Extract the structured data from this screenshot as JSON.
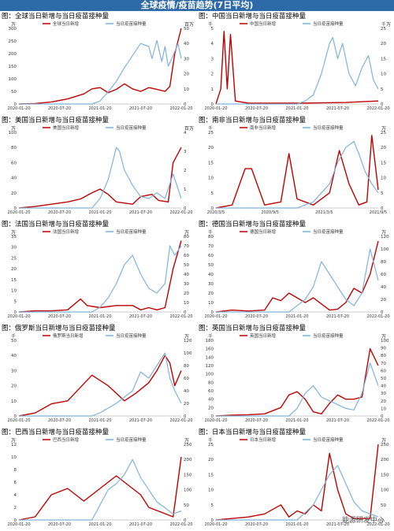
{
  "banner": "全球疫情/疫苗趋势(7日平均)",
  "watermark": "能源研发中心",
  "colors": {
    "cases": "#c00000",
    "vaccines": "#7fb3dc",
    "banner": "#2e6aa8"
  },
  "chart_data": [
    {
      "id": "global",
      "type": "line",
      "title": "图：全球当日新增与当日疫苗接种量",
      "left_unit": "万",
      "right_unit": "百万",
      "left_ticks": [
        0,
        50,
        100,
        150,
        200,
        250,
        300
      ],
      "left_lim": [
        0,
        300
      ],
      "right_ticks": [
        0,
        10,
        20,
        30,
        40,
        50
      ],
      "right_lim": [
        0,
        50
      ],
      "x_ticks": [
        "2020-01-20",
        "2020-07-20",
        "2021-01-20",
        "2021-07-20",
        "2022-01-20"
      ],
      "series": [
        {
          "name": "全球当日新增",
          "axis": "left",
          "color": "#c00000",
          "x": [
            0,
            0.1,
            0.2,
            0.3,
            0.4,
            0.45,
            0.5,
            0.55,
            0.6,
            0.65,
            0.7,
            0.75,
            0.8,
            0.85,
            0.9,
            0.93,
            0.96,
            1.0
          ],
          "y": [
            0,
            2,
            8,
            20,
            40,
            60,
            65,
            45,
            58,
            80,
            60,
            50,
            65,
            58,
            50,
            70,
            200,
            300
          ]
        },
        {
          "name": "当日疫苗接种量",
          "axis": "right",
          "color": "#7fb3dc",
          "x": [
            0,
            0.45,
            0.5,
            0.55,
            0.6,
            0.65,
            0.7,
            0.75,
            0.8,
            0.82,
            0.85,
            0.88,
            0.9,
            0.92,
            0.95,
            0.98,
            1.0
          ],
          "y": [
            0,
            0,
            2,
            8,
            15,
            24,
            32,
            40,
            38,
            30,
            42,
            28,
            38,
            25,
            32,
            40,
            30
          ]
        }
      ]
    },
    {
      "id": "china",
      "type": "line",
      "title": "图：中国当日新增与当日疫苗接种量",
      "left_unit": "千",
      "right_unit": "千万",
      "left_ticks": [
        0,
        1,
        2,
        3,
        4,
        5
      ],
      "left_lim": [
        0,
        5
      ],
      "right_ticks": [
        0,
        5,
        10,
        15,
        20,
        25
      ],
      "right_lim": [
        0,
        25
      ],
      "x_ticks": [
        "2020-01-20",
        "2020-07-20",
        "2021-01-20",
        "2021-07-20",
        "2022-01-20"
      ],
      "series": [
        {
          "name": "中国当日新增",
          "axis": "left",
          "color": "#c00000",
          "x": [
            0,
            0.03,
            0.05,
            0.07,
            0.09,
            0.12,
            0.2,
            0.5,
            0.8,
            0.9,
            1.0
          ],
          "y": [
            0,
            1,
            4.8,
            1,
            4.6,
            0.2,
            0.05,
            0.05,
            0.1,
            0.15,
            0.2
          ]
        },
        {
          "name": "当日疫苗接种量",
          "axis": "right",
          "color": "#7fb3dc",
          "x": [
            0,
            0.5,
            0.55,
            0.6,
            0.65,
            0.7,
            0.72,
            0.75,
            0.78,
            0.82,
            0.86,
            0.9,
            0.94,
            0.97,
            1.0
          ],
          "y": [
            0,
            0,
            1,
            3,
            10,
            20,
            22,
            15,
            20,
            10,
            6,
            12,
            16,
            8,
            5
          ]
        }
      ]
    },
    {
      "id": "usa",
      "type": "line",
      "title": "图：美国当日新增与当日疫苗接种量",
      "left_unit": "万",
      "right_unit": "百万",
      "left_ticks": [
        0,
        20,
        40,
        60,
        80,
        100
      ],
      "left_lim": [
        0,
        100
      ],
      "right_ticks": [
        0,
        1,
        2,
        3,
        4
      ],
      "right_lim": [
        0,
        4
      ],
      "x_ticks": [
        "2020-01-20",
        "2020-07-20",
        "2021-01-20",
        "2021-07-20",
        "2022-01-20"
      ],
      "series": [
        {
          "name": "美国当日新增",
          "axis": "left",
          "color": "#c00000",
          "x": [
            0,
            0.1,
            0.2,
            0.3,
            0.38,
            0.45,
            0.5,
            0.55,
            0.6,
            0.7,
            0.75,
            0.82,
            0.86,
            0.92,
            0.95,
            1.0
          ],
          "y": [
            0,
            2,
            5,
            8,
            12,
            20,
            25,
            18,
            8,
            5,
            15,
            18,
            10,
            8,
            60,
            80
          ]
        },
        {
          "name": "当日疫苗接种量",
          "axis": "right",
          "color": "#7fb3dc",
          "x": [
            0,
            0.45,
            0.5,
            0.55,
            0.6,
            0.62,
            0.65,
            0.7,
            0.75,
            0.8,
            0.85,
            0.9,
            0.95,
            1.0
          ],
          "y": [
            0,
            0,
            0.5,
            1.5,
            3.2,
            3.0,
            2.0,
            1.2,
            0.6,
            0.5,
            0.8,
            0.5,
            1.8,
            0.5
          ]
        }
      ]
    },
    {
      "id": "southafrica",
      "type": "line",
      "title": "图：南非当日新增与当日疫苗接种量",
      "left_unit": "千",
      "right_unit": "万",
      "left_ticks": [
        0,
        5,
        10,
        15,
        20,
        25
      ],
      "left_lim": [
        0,
        25
      ],
      "right_ticks": [
        0,
        5,
        10,
        15,
        20,
        25
      ],
      "right_lim": [
        0,
        25
      ],
      "x_ticks": [
        "2020/3/5",
        "2020/9/5",
        "2021/3/5",
        "2021/9/5"
      ],
      "series": [
        {
          "name": "南非当日新增",
          "axis": "left",
          "color": "#c00000",
          "x": [
            0,
            0.1,
            0.18,
            0.22,
            0.3,
            0.4,
            0.45,
            0.5,
            0.6,
            0.7,
            0.76,
            0.82,
            0.88,
            0.93,
            0.96,
            1.0
          ],
          "y": [
            0,
            1,
            13,
            13,
            1,
            2,
            18,
            3,
            1,
            5,
            19,
            8,
            1,
            2,
            24,
            6
          ]
        },
        {
          "name": "当日疫苗接种量",
          "axis": "right",
          "color": "#7fb3dc",
          "x": [
            0,
            0.5,
            0.6,
            0.7,
            0.75,
            0.8,
            0.85,
            0.88,
            0.92,
            0.96,
            1.0
          ],
          "y": [
            0,
            0,
            2,
            8,
            15,
            20,
            22,
            18,
            12,
            8,
            5
          ]
        }
      ]
    },
    {
      "id": "france",
      "type": "line",
      "title": "图：法国当日新增与当日疫苗接种量",
      "left_unit": "万",
      "right_unit": "万",
      "left_ticks": [
        0,
        5,
        10,
        15,
        20,
        25,
        30,
        35
      ],
      "left_lim": [
        0,
        35
      ],
      "right_ticks": [
        0,
        10,
        20,
        30,
        40,
        50,
        60,
        70,
        80
      ],
      "right_lim": [
        0,
        80
      ],
      "x_ticks": [
        "2020-01-20",
        "2020-07-20",
        "2021-01-20",
        "2021-07-20",
        "2022-01-20"
      ],
      "series": [
        {
          "name": "法国当日新增",
          "axis": "left",
          "color": "#c00000",
          "x": [
            0,
            0.1,
            0.2,
            0.3,
            0.38,
            0.42,
            0.5,
            0.6,
            0.7,
            0.75,
            0.8,
            0.85,
            0.9,
            0.95,
            1.0
          ],
          "y": [
            0,
            0.5,
            0.5,
            1,
            6,
            3,
            2,
            3,
            3,
            1,
            2,
            1,
            2,
            20,
            33
          ]
        },
        {
          "name": "当日疫苗接种量",
          "axis": "right",
          "color": "#7fb3dc",
          "x": [
            0,
            0.45,
            0.5,
            0.55,
            0.6,
            0.65,
            0.7,
            0.75,
            0.8,
            0.85,
            0.9,
            0.93,
            0.96,
            1.0
          ],
          "y": [
            0,
            0,
            5,
            15,
            30,
            50,
            60,
            40,
            25,
            20,
            30,
            70,
            60,
            70
          ]
        }
      ]
    },
    {
      "id": "germany",
      "type": "line",
      "title": "图：德国当日新增与当日疫苗接种量",
      "left_unit": "千",
      "right_unit": "万",
      "left_ticks": [
        0,
        10,
        20,
        30,
        40,
        50,
        60,
        70,
        80
      ],
      "left_lim": [
        0,
        80
      ],
      "right_ticks": [
        0,
        20,
        40,
        60,
        80,
        100,
        120
      ],
      "right_lim": [
        0,
        120
      ],
      "x_ticks": [
        "2020-01-20",
        "2020-07-20",
        "2021-01-20",
        "2021-07-20",
        "2022-01-20"
      ],
      "series": [
        {
          "name": "德国当日新增",
          "axis": "left",
          "color": "#c00000",
          "x": [
            0,
            0.1,
            0.2,
            0.3,
            0.35,
            0.4,
            0.45,
            0.5,
            0.55,
            0.6,
            0.7,
            0.75,
            0.8,
            0.85,
            0.9,
            0.95,
            1.0
          ],
          "y": [
            0,
            2,
            1,
            2,
            15,
            12,
            20,
            15,
            10,
            15,
            2,
            3,
            10,
            25,
            20,
            40,
            75
          ]
        },
        {
          "name": "当日疫苗接种量",
          "axis": "right",
          "color": "#7fb3dc",
          "x": [
            0,
            0.45,
            0.5,
            0.55,
            0.6,
            0.65,
            0.7,
            0.75,
            0.8,
            0.85,
            0.9,
            0.95,
            1.0
          ],
          "y": [
            0,
            0,
            10,
            20,
            40,
            80,
            60,
            40,
            20,
            10,
            30,
            100,
            50
          ]
        }
      ]
    },
    {
      "id": "russia",
      "type": "line",
      "title": "图：俄罗斯当日新增与当日疫苗接种量",
      "left_unit": "千",
      "right_unit": "万",
      "left_ticks": [
        0,
        10,
        20,
        30,
        40,
        50
      ],
      "left_lim": [
        0,
        50
      ],
      "right_ticks": [
        0,
        20,
        40,
        60,
        80,
        100,
        120
      ],
      "right_lim": [
        0,
        120
      ],
      "x_ticks": [
        "2020-01-20",
        "2020-07-20",
        "2021-01-20",
        "2021-07-20",
        "2022-01-20"
      ],
      "series": [
        {
          "name": "俄罗斯当日新增",
          "axis": "left",
          "color": "#c00000",
          "x": [
            0,
            0.1,
            0.2,
            0.3,
            0.45,
            0.55,
            0.65,
            0.72,
            0.8,
            0.85,
            0.9,
            0.93,
            0.96,
            1.0
          ],
          "y": [
            0,
            2,
            8,
            10,
            27,
            20,
            10,
            15,
            22,
            30,
            40,
            35,
            20,
            30
          ]
        },
        {
          "name": "当日疫苗接种量",
          "axis": "right",
          "color": "#7fb3dc",
          "x": [
            0,
            0.45,
            0.5,
            0.6,
            0.7,
            0.75,
            0.8,
            0.85,
            0.9,
            0.93,
            0.96,
            1.0
          ],
          "y": [
            0,
            0,
            5,
            20,
            40,
            70,
            60,
            80,
            100,
            60,
            40,
            20
          ]
        }
      ]
    },
    {
      "id": "uk",
      "type": "line",
      "title": "图：英国当日新增与当日疫苗接种量",
      "left_unit": "千",
      "right_unit": "万",
      "left_ticks": [
        0,
        20,
        40,
        60,
        80,
        100,
        120,
        140,
        160,
        180
      ],
      "left_lim": [
        0,
        180
      ],
      "right_ticks": [
        0,
        10,
        20,
        30,
        40,
        50,
        60,
        70,
        80,
        90,
        100
      ],
      "right_lim": [
        0,
        100
      ],
      "x_ticks": [
        "2020-01-20",
        "2020-07-20",
        "2021-01-20",
        "2021-07-20",
        "2022-01-20"
      ],
      "series": [
        {
          "name": "英国当日新增",
          "axis": "left",
          "color": "#c00000",
          "x": [
            0,
            0.1,
            0.2,
            0.3,
            0.4,
            0.45,
            0.5,
            0.55,
            0.6,
            0.65,
            0.7,
            0.75,
            0.8,
            0.85,
            0.9,
            0.95,
            1.0
          ],
          "y": [
            0,
            2,
            3,
            5,
            20,
            50,
            58,
            40,
            10,
            5,
            30,
            50,
            40,
            40,
            45,
            160,
            120
          ]
        },
        {
          "name": "当日疫苗接种量",
          "axis": "right",
          "color": "#7fb3dc",
          "x": [
            0,
            0.45,
            0.5,
            0.55,
            0.6,
            0.65,
            0.7,
            0.75,
            0.8,
            0.85,
            0.9,
            0.95,
            1.0
          ],
          "y": [
            0,
            0,
            10,
            30,
            40,
            25,
            20,
            15,
            10,
            8,
            30,
            70,
            40
          ]
        }
      ]
    },
    {
      "id": "brazil",
      "type": "line",
      "title": "图：巴西当日新增与当日疫苗接种量",
      "left_unit": "万",
      "right_unit": "万",
      "left_ticks": [
        0,
        2,
        4,
        6,
        8,
        10,
        12
      ],
      "left_lim": [
        0,
        12
      ],
      "right_ticks": [
        0,
        50,
        100,
        150,
        200,
        250
      ],
      "right_lim": [
        0,
        250
      ],
      "x_ticks": [
        "2020-01-20",
        "2020-07-20",
        "2021-01-20",
        "2021-07-20",
        "2022-01-20"
      ],
      "series": [
        {
          "name": "巴西当日新增",
          "axis": "left",
          "color": "#c00000",
          "x": [
            0,
            0.1,
            0.2,
            0.3,
            0.4,
            0.5,
            0.55,
            0.6,
            0.65,
            0.7,
            0.75,
            0.8,
            0.85,
            0.9,
            0.95,
            1.0
          ],
          "y": [
            0,
            0.5,
            4,
            5,
            3,
            5,
            6,
            7,
            6,
            5,
            4,
            2,
            1.5,
            1,
            0.5,
            10
          ]
        },
        {
          "name": "当日疫苗接种量",
          "axis": "right",
          "color": "#7fb3dc",
          "x": [
            0,
            0.45,
            0.5,
            0.55,
            0.6,
            0.65,
            0.7,
            0.75,
            0.8,
            0.85,
            0.9,
            0.95,
            1.0
          ],
          "y": [
            0,
            0,
            50,
            100,
            120,
            150,
            200,
            140,
            100,
            60,
            40,
            20,
            30
          ]
        }
      ]
    },
    {
      "id": "japan",
      "type": "line",
      "title": "图：日本当日新增与当日疫苗接种量",
      "left_unit": "千",
      "right_unit": "万",
      "left_ticks": [
        0,
        5,
        10,
        15,
        20,
        25
      ],
      "left_lim": [
        0,
        25
      ],
      "right_ticks": [
        0,
        50,
        100,
        150,
        200,
        250
      ],
      "right_lim": [
        0,
        250
      ],
      "x_ticks": [
        "2020-01-20",
        "2020-07-20",
        "2021-01-20",
        "2021-07-20",
        "2022-01-20"
      ],
      "series": [
        {
          "name": "日本当日新增",
          "axis": "left",
          "color": "#c00000",
          "x": [
            0,
            0.1,
            0.2,
            0.3,
            0.4,
            0.45,
            0.5,
            0.55,
            0.6,
            0.65,
            0.7,
            0.75,
            0.8,
            0.85,
            0.9,
            0.95,
            1.0
          ],
          "y": [
            0,
            0.5,
            1,
            2,
            5,
            1,
            3,
            2,
            5,
            3,
            22,
            10,
            2,
            0.5,
            0.5,
            0.5,
            25
          ]
        },
        {
          "name": "当日疫苗接种量",
          "axis": "right",
          "color": "#7fb3dc",
          "x": [
            0,
            0.5,
            0.6,
            0.65,
            0.7,
            0.75,
            0.8,
            0.85,
            0.9,
            0.95,
            1.0
          ],
          "y": [
            0,
            0,
            50,
            100,
            150,
            180,
            120,
            60,
            30,
            20,
            10
          ]
        }
      ]
    }
  ]
}
